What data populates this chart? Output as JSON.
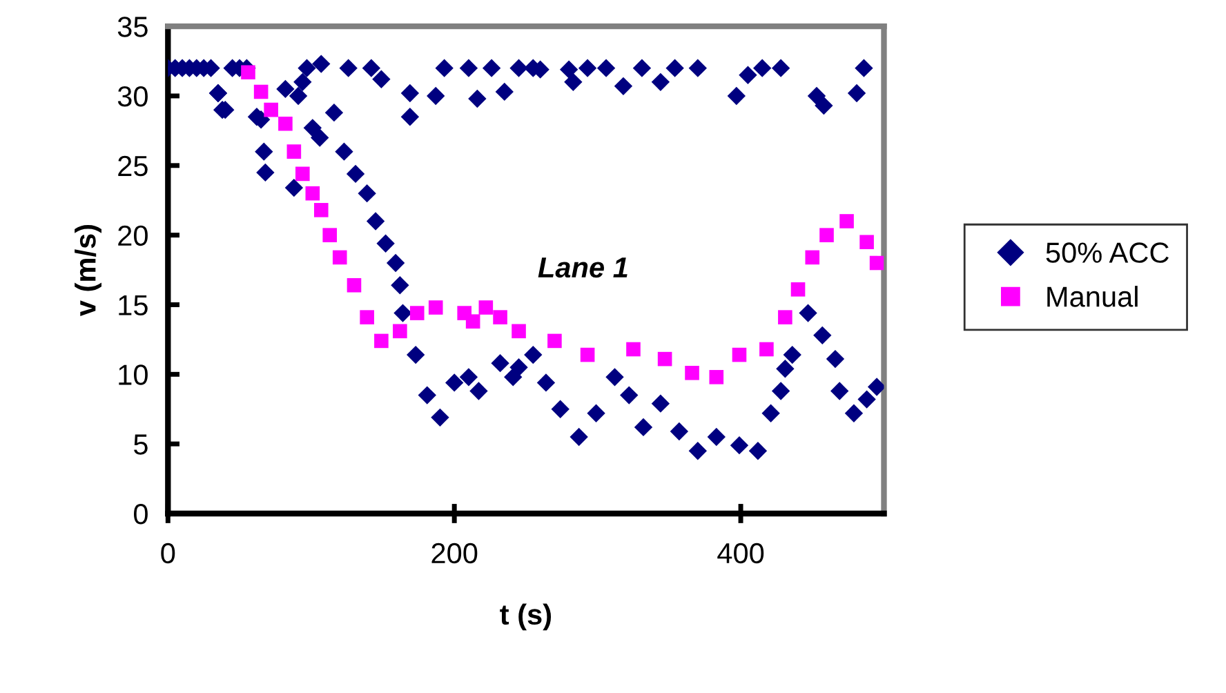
{
  "chart_data": {
    "type": "scatter",
    "xlabel": "t (s)",
    "ylabel": "v (m/s)",
    "xlim": [
      0,
      500
    ],
    "xticks": [
      0,
      200,
      400
    ],
    "ylim": [
      0,
      35
    ],
    "yticks": [
      0,
      5,
      10,
      15,
      20,
      25,
      30,
      35
    ],
    "grid": false,
    "legend": "right",
    "annotations": [
      "Lane 1"
    ],
    "series": [
      {
        "name": "50% ACC",
        "color": "#000080",
        "marker": "diamond",
        "x": [
          0,
          5,
          10,
          15,
          20,
          25,
          30,
          35,
          40,
          45,
          50,
          55,
          35,
          38,
          62,
          65,
          67,
          68,
          82,
          88,
          91,
          94,
          97,
          101,
          106,
          107,
          116,
          123,
          126,
          131,
          139,
          142,
          145,
          149,
          152,
          159,
          162,
          164,
          169,
          169,
          173,
          181,
          187,
          190,
          193,
          200,
          210,
          210,
          216,
          217,
          226,
          232,
          235,
          241,
          245,
          245,
          255,
          255,
          260,
          264,
          274,
          280,
          283,
          287,
          293,
          299,
          306,
          312,
          318,
          322,
          331,
          332,
          344,
          344,
          354,
          357,
          370,
          370,
          383,
          397,
          399,
          405,
          412,
          415,
          421,
          428,
          428,
          431,
          436,
          447,
          453,
          457,
          458,
          466,
          469,
          479,
          481,
          486,
          488,
          495
        ],
        "values": [
          32,
          32,
          32,
          32,
          32,
          32,
          32,
          30.2,
          29,
          32,
          32,
          32,
          30.2,
          29,
          28.5,
          28.3,
          26,
          24.5,
          30.5,
          23.4,
          30,
          31,
          32,
          27.7,
          27,
          32.3,
          28.8,
          26,
          32,
          24.4,
          23,
          32,
          21,
          31.2,
          19.4,
          18,
          16.4,
          14.4,
          30.2,
          28.5,
          11.4,
          8.5,
          30,
          6.9,
          32,
          9.4,
          9.8,
          32,
          29.8,
          8.8,
          32,
          10.8,
          30.3,
          9.8,
          10.5,
          32,
          11.4,
          32,
          31.9,
          9.4,
          7.5,
          31.9,
          31,
          5.5,
          32,
          7.2,
          32,
          9.8,
          30.7,
          8.5,
          32,
          6.2,
          7.9,
          31,
          32,
          5.9,
          4.5,
          32,
          5.5,
          30,
          4.9,
          31.5,
          4.5,
          32,
          7.2,
          8.8,
          32,
          10.4,
          11.4,
          14.4,
          30,
          12.8,
          29.3,
          11.1,
          8.8,
          7.2,
          30.2,
          32,
          8.2,
          9.1
        ]
      },
      {
        "name": "Manual",
        "color": "#ff00ff",
        "marker": "square",
        "x": [
          56,
          65,
          72,
          82,
          88,
          94,
          101,
          107,
          113,
          120,
          130,
          139,
          149,
          162,
          174,
          187,
          207,
          213,
          222,
          232,
          245,
          270,
          293,
          325,
          347,
          366,
          383,
          399,
          418,
          431,
          440,
          450,
          460,
          474,
          488,
          495
        ],
        "values": [
          31.7,
          30.3,
          29,
          28,
          26,
          24.4,
          23,
          21.8,
          20,
          18.4,
          16.4,
          14.1,
          12.4,
          13.1,
          14.4,
          14.8,
          14.4,
          13.8,
          14.8,
          14.1,
          13.1,
          12.4,
          11.4,
          11.8,
          11.1,
          10.1,
          9.8,
          11.4,
          11.8,
          14.1,
          16.1,
          18.4,
          20,
          21,
          19.5,
          18
        ]
      }
    ]
  }
}
